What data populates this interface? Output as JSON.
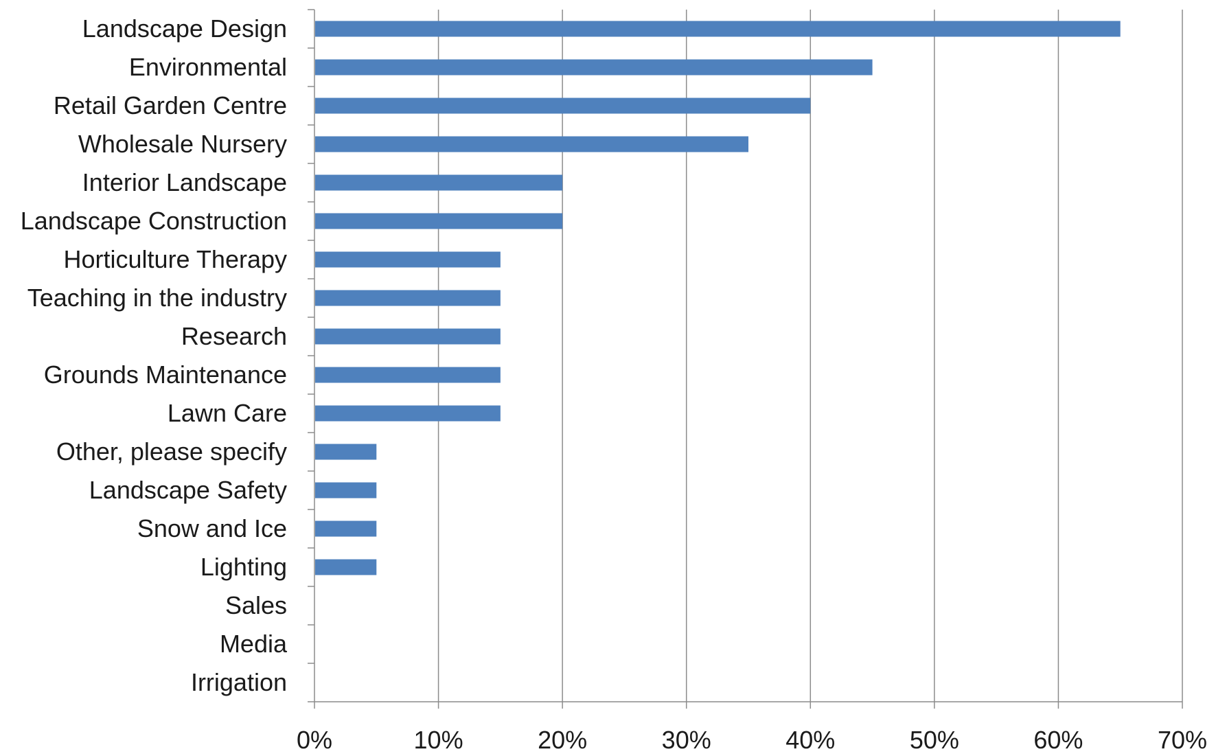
{
  "chart_data": {
    "type": "bar",
    "orientation": "horizontal",
    "categories": [
      "Landscape Design",
      "Environmental",
      "Retail Garden Centre",
      "Wholesale Nursery",
      "Interior Landscape",
      "Landscape Construction",
      "Horticulture Therapy",
      "Teaching in the industry",
      "Research",
      "Grounds Maintenance",
      "Lawn Care",
      "Other, please specify",
      "Landscape Safety",
      "Snow and Ice",
      "Lighting",
      "Sales",
      "Media",
      "Irrigation"
    ],
    "values": [
      65,
      45,
      40,
      35,
      20,
      20,
      15,
      15,
      15,
      15,
      15,
      5,
      5,
      5,
      5,
      0,
      0,
      0
    ],
    "xlim": [
      0,
      70
    ],
    "xticks": [
      "0%",
      "10%",
      "20%",
      "30%",
      "40%",
      "50%",
      "60%",
      "70%"
    ],
    "grid": "vertical",
    "legend": "none",
    "colors": {
      "bar": "#4f81bd",
      "grid": "#8c8c8c",
      "axis": "#8c8c8c"
    }
  }
}
